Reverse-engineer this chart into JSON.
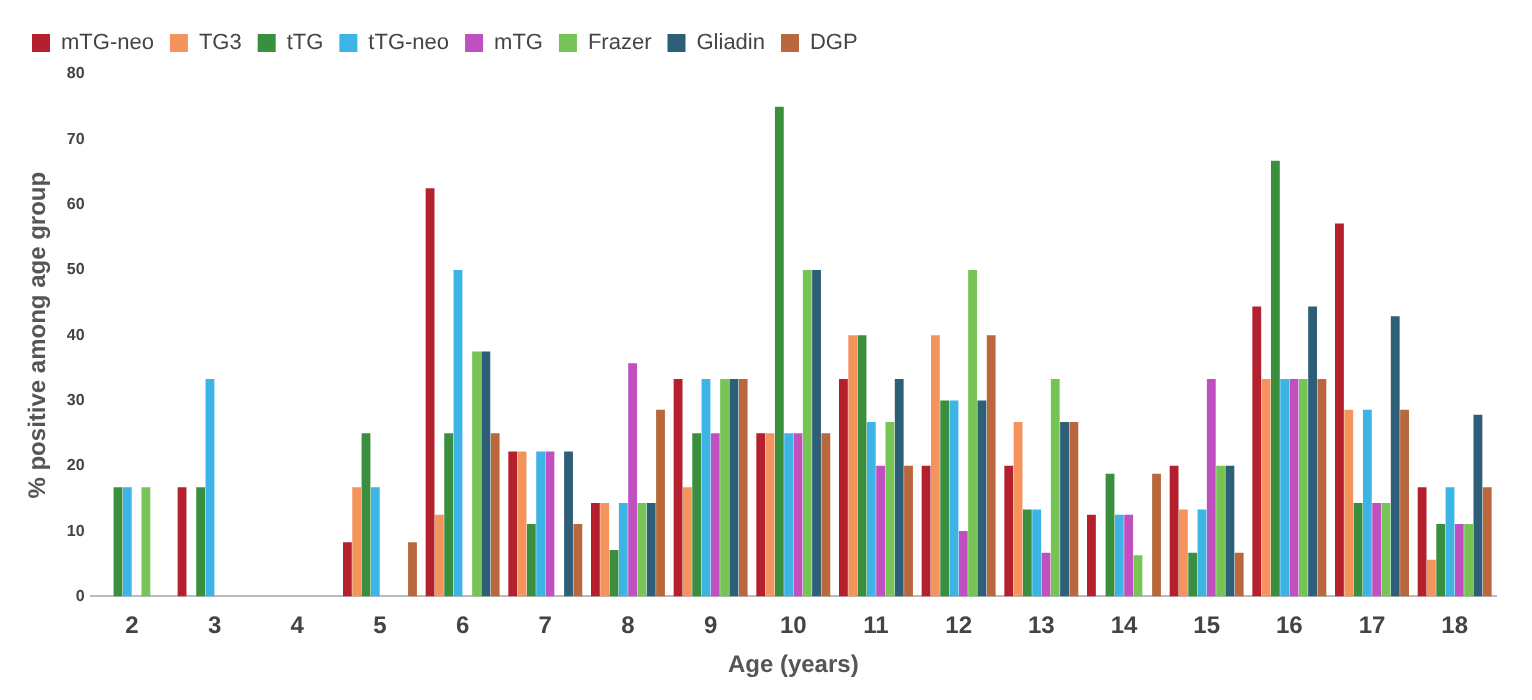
{
  "chart_data": {
    "type": "bar",
    "xlabel": "Age (years)",
    "ylabel": "% positive among age group",
    "categories": [
      "2",
      "3",
      "4",
      "5",
      "6",
      "7",
      "8",
      "9",
      "10",
      "11",
      "12",
      "13",
      "14",
      "15",
      "16",
      "17",
      "18"
    ],
    "series": [
      {
        "name": "mTG-neo",
        "color": "#b5202f",
        "values": [
          0,
          16.7,
          0,
          8.3,
          62.5,
          22.2,
          14.3,
          33.3,
          25,
          33.3,
          20,
          20,
          12.5,
          20,
          44.4,
          57.1,
          16.7
        ]
      },
      {
        "name": "TG3",
        "color": "#f4945c",
        "values": [
          0,
          0,
          0,
          16.7,
          12.5,
          22.2,
          14.3,
          16.7,
          25,
          40,
          40,
          26.7,
          0,
          13.3,
          33.3,
          28.6,
          5.6
        ]
      },
      {
        "name": "tTG",
        "color": "#3a8f3e",
        "values": [
          16.7,
          16.7,
          0,
          25,
          25,
          11.1,
          7.1,
          25,
          75,
          40,
          30,
          13.3,
          18.8,
          6.7,
          66.7,
          14.3,
          11.1
        ]
      },
      {
        "name": "tTG-neo",
        "color": "#3cb4e6",
        "values": [
          16.7,
          33.3,
          0,
          16.7,
          50,
          22.2,
          14.3,
          33.3,
          25,
          26.7,
          30,
          13.3,
          12.5,
          13.3,
          33.3,
          28.6,
          16.7
        ]
      },
      {
        "name": "mTG",
        "color": "#c050c0",
        "values": [
          0,
          0,
          0,
          0,
          0,
          22.2,
          35.7,
          25,
          25,
          20,
          10,
          6.7,
          12.5,
          33.3,
          33.3,
          14.3,
          11.1
        ]
      },
      {
        "name": "Frazer",
        "color": "#76c456",
        "values": [
          16.7,
          0,
          0,
          0,
          37.5,
          0,
          14.3,
          33.3,
          50,
          26.7,
          50,
          33.3,
          6.3,
          20,
          33.3,
          14.3,
          11.1
        ]
      },
      {
        "name": "Gliadin",
        "color": "#2e5f78",
        "values": [
          0,
          0,
          0,
          0,
          37.5,
          22.2,
          14.3,
          33.3,
          50,
          33.3,
          30,
          26.7,
          0,
          20,
          44.4,
          42.9,
          27.8
        ]
      },
      {
        "name": "DGP",
        "color": "#b8683c",
        "values": [
          0,
          0,
          0,
          8.3,
          25,
          11.1,
          28.6,
          33.3,
          25,
          20,
          40,
          26.7,
          18.8,
          6.7,
          33.3,
          28.6,
          16.7
        ]
      }
    ],
    "ylim": [
      0,
      80
    ],
    "yticks": [
      0,
      10,
      20,
      30,
      40,
      50,
      60,
      70,
      80
    ],
    "grid": false,
    "legend": "top"
  }
}
